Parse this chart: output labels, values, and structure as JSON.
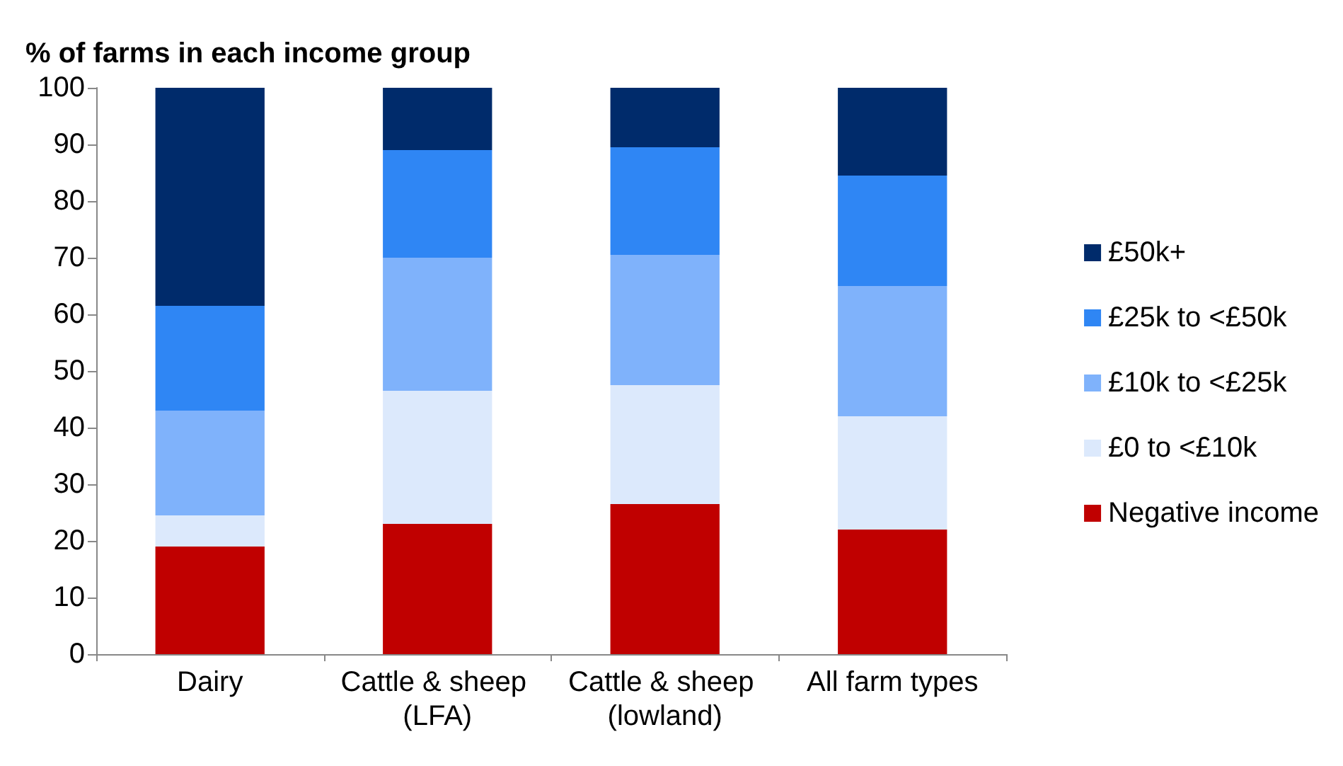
{
  "chart_data": {
    "type": "bar",
    "stacked": true,
    "ylabel": "% of farms in each income group",
    "categories": [
      "Dairy",
      "Cattle & sheep (LFA)",
      "Cattle & sheep (lowland)",
      "All farm types"
    ],
    "series": [
      {
        "name": "Negative income",
        "color": "#c00000",
        "values": [
          19,
          23,
          26.5,
          22
        ]
      },
      {
        "name": "£0 to <£10k",
        "color": "#dce9fc",
        "values": [
          5.5,
          23.5,
          21,
          20
        ]
      },
      {
        "name": "£10k to <£25k",
        "color": "#7fb2fb",
        "values": [
          18.5,
          23.5,
          23,
          23
        ]
      },
      {
        "name": "£25k to <£50k",
        "color": "#2f86f4",
        "values": [
          18.5,
          19,
          19,
          19.5
        ]
      },
      {
        "name": "£50k+",
        "color": "#002b6b",
        "values": [
          38.5,
          11,
          10.5,
          15.5
        ]
      }
    ],
    "ylim": [
      0,
      100
    ],
    "yticks": [
      0,
      10,
      20,
      30,
      40,
      50,
      60,
      70,
      80,
      90,
      100
    ],
    "grid": false,
    "legend": "right"
  }
}
